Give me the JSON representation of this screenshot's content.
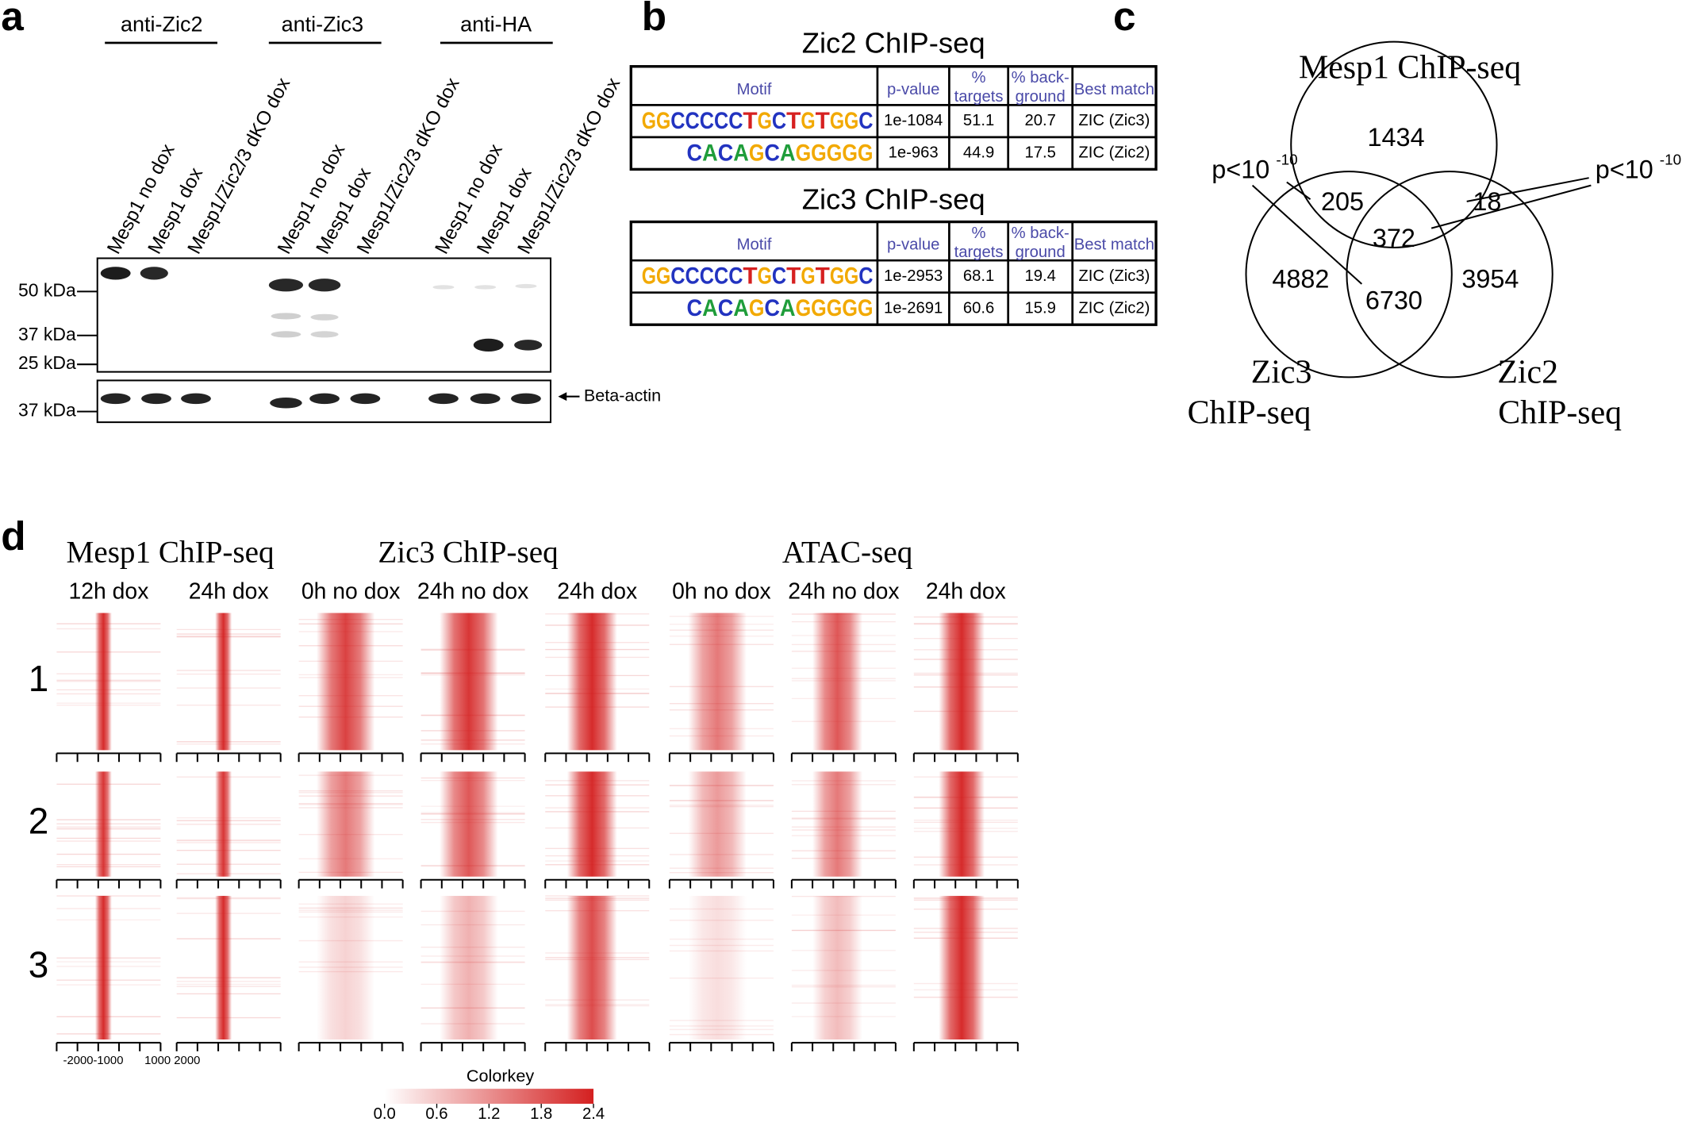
{
  "panel_labels": [
    "a",
    "b",
    "c",
    "d"
  ],
  "western": {
    "antibodies": [
      "anti-Zic2",
      "anti-Zic3",
      "anti-HA"
    ],
    "lanes": [
      "Mesp1 no dox",
      "Mesp1 dox",
      "Mesp1/Zic2/3 dKO dox",
      "Mesp1 no dox",
      "Mesp1 dox",
      "Mesp1/Zic2/3 dKO dox",
      "Mesp1 no dox",
      "Mesp1 dox",
      "Mesp1/Zic2/3 dKO dox"
    ],
    "markers": [
      "50 kDa",
      "37 kDa",
      "25 kDa"
    ],
    "actin_marker": "37 kDa",
    "actin_label": "Beta-actin"
  },
  "motifs": [
    {
      "title": "Zic2 ChIP-seq",
      "header": [
        [
          "Motif"
        ],
        [
          "p-value"
        ],
        [
          "%",
          "targets"
        ],
        [
          "% back-",
          "ground"
        ],
        [
          "Best match"
        ]
      ],
      "rows": [
        {
          "logo": [
            "G",
            "G",
            "C",
            "C",
            "C",
            "C",
            "C",
            "T",
            "G",
            "C",
            "T",
            "G",
            "T",
            "G",
            "G",
            "C"
          ],
          "cells": [
            "1e-1084",
            "51.1",
            "20.7",
            "ZIC (Zic3)"
          ]
        },
        {
          "logo": [
            "C",
            "A",
            "C",
            "A",
            "G",
            "C",
            "A",
            "G",
            "G",
            "G",
            "G",
            "G"
          ],
          "cells": [
            "1e-963",
            "44.9",
            "17.5",
            "ZIC (Zic2)"
          ]
        }
      ]
    },
    {
      "title": "Zic3 ChIP-seq",
      "header": [
        [
          "Motif"
        ],
        [
          "p-value"
        ],
        [
          "%",
          "targets"
        ],
        [
          "% back-",
          "ground"
        ],
        [
          "Best match"
        ]
      ],
      "rows": [
        {
          "logo": [
            "G",
            "G",
            "C",
            "C",
            "C",
            "C",
            "C",
            "T",
            "G",
            "C",
            "T",
            "G",
            "T",
            "G",
            "G",
            "C"
          ],
          "cells": [
            "1e-2953",
            "68.1",
            "19.4",
            "ZIC (Zic3)"
          ]
        },
        {
          "logo": [
            "C",
            "A",
            "C",
            "A",
            "G",
            "C",
            "A",
            "G",
            "G",
            "G",
            "G",
            "G"
          ],
          "cells": [
            "1e-2691",
            "60.6",
            "15.9",
            "ZIC (Zic2)"
          ]
        }
      ]
    }
  ],
  "venn": {
    "sets": [
      [
        "Mesp1 ChIP-seq"
      ],
      [
        "Zic3",
        "ChIP-seq"
      ],
      [
        "Zic2",
        "ChIP-seq"
      ]
    ],
    "counts": [
      1434,
      205,
      18,
      372,
      4882,
      6730,
      3954
    ],
    "pvalue": {
      "base": "p<10",
      "exponent": "-10"
    }
  },
  "heatmaps": {
    "groups": [
      "Mesp1 ChIP-seq",
      "Zic3 ChIP-seq",
      "ATAC-seq"
    ],
    "conditions": [
      "12h dox",
      "24h dox",
      "0h no dox",
      "24h no dox",
      "24h dox",
      "0h no dox",
      "24h no dox",
      "24h dox"
    ],
    "clusters": [
      "1",
      "2",
      "3"
    ],
    "axis_labels": [
      "-2000-1000",
      "1000 2000"
    ],
    "colorkey": {
      "title": "Colorkey",
      "ticks": [
        "0.0",
        "0.6",
        "1.2",
        "1.8",
        "2.4"
      ]
    }
  }
}
